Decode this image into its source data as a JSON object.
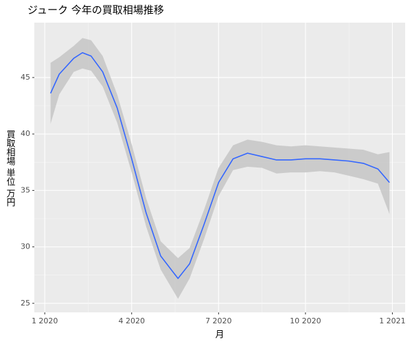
{
  "chart_data": {
    "type": "line",
    "title": "ジューク 今年の買取相場推移",
    "x_label": "月",
    "y_label": "買取相場 単位 万円",
    "x": [
      0.2,
      0.5,
      1.0,
      1.3,
      1.6,
      2.0,
      2.5,
      3.0,
      3.5,
      4.0,
      4.6,
      5.0,
      5.5,
      6.0,
      6.5,
      7.0,
      7.5,
      8.0,
      8.5,
      9.0,
      9.5,
      10.0,
      10.5,
      11.0,
      11.5,
      11.9
    ],
    "values": [
      43.6,
      45.3,
      46.7,
      47.2,
      46.9,
      45.5,
      42.3,
      37.8,
      33.0,
      29.2,
      27.2,
      28.5,
      32.0,
      35.7,
      37.8,
      38.3,
      38.0,
      37.7,
      37.7,
      37.8,
      37.8,
      37.7,
      37.6,
      37.4,
      36.9,
      35.7
    ],
    "ci_lower": [
      40.9,
      43.5,
      45.5,
      45.8,
      45.6,
      44.2,
      41.0,
      36.6,
      31.8,
      28.0,
      25.4,
      27.2,
      30.7,
      34.5,
      36.8,
      37.1,
      37.0,
      36.5,
      36.6,
      36.6,
      36.7,
      36.6,
      36.3,
      36.0,
      35.6,
      32.9
    ],
    "ci_upper": [
      46.3,
      46.8,
      47.8,
      48.5,
      48.3,
      46.9,
      43.5,
      39.1,
      34.3,
      30.5,
      29.0,
      29.9,
      33.3,
      37.0,
      39.0,
      39.5,
      39.3,
      39.0,
      38.9,
      39.0,
      38.9,
      38.8,
      38.7,
      38.6,
      38.2,
      38.4
    ],
    "color": "#3366ff",
    "band_color": "#c8c8c8",
    "xlim": [
      -0.36,
      12.44
    ],
    "xticks": [
      {
        "value": 0,
        "label": "1 2020"
      },
      {
        "value": 3,
        "label": "4 2020"
      },
      {
        "value": 6,
        "label": "7 2020"
      },
      {
        "value": 9,
        "label": "10 2020"
      },
      {
        "value": 12,
        "label": "1 2021"
      }
    ],
    "ylim": [
      24.2,
      49.86
    ],
    "yticks": [
      25,
      30,
      35,
      40,
      45
    ],
    "grid": true
  }
}
